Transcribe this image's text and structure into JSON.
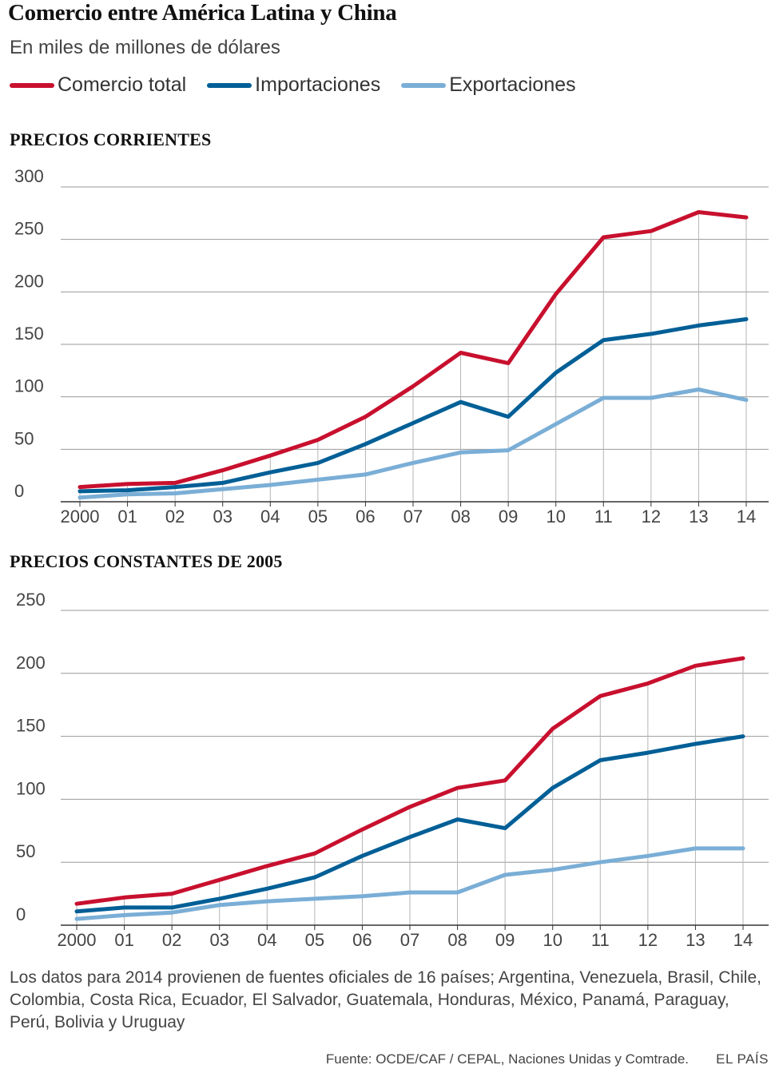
{
  "title": "Comercio entre América Latina y China",
  "subtitle": "En miles de millones de dólares",
  "legend": [
    {
      "label": "Comercio total",
      "color": "#c8102e"
    },
    {
      "label": "Importaciones",
      "color": "#005f96"
    },
    {
      "label": "Exportaciones",
      "color": "#7aaed6"
    }
  ],
  "chart_data": [
    {
      "type": "line",
      "title": "PRECIOS CORRIENTES",
      "x": [
        "2000",
        "01",
        "02",
        "03",
        "04",
        "05",
        "06",
        "07",
        "08",
        "09",
        "10",
        "11",
        "12",
        "13",
        "14"
      ],
      "ylim": [
        0,
        300
      ],
      "yticks": [
        0,
        50,
        100,
        150,
        200,
        250,
        300
      ],
      "grid": true,
      "series": [
        {
          "name": "Comercio total",
          "color": "#c8102e",
          "values": [
            14,
            17,
            18,
            30,
            44,
            59,
            81,
            110,
            142,
            132,
            198,
            252,
            258,
            276,
            271
          ]
        },
        {
          "name": "Importaciones",
          "color": "#005f96",
          "values": [
            10,
            11,
            14,
            18,
            28,
            37,
            55,
            75,
            95,
            81,
            123,
            154,
            160,
            168,
            174
          ]
        },
        {
          "name": "Exportaciones",
          "color": "#7aaed6",
          "values": [
            4,
            7,
            8,
            12,
            16,
            21,
            26,
            37,
            47,
            49,
            74,
            99,
            99,
            107,
            97
          ]
        }
      ]
    },
    {
      "type": "line",
      "title": "PRECIOS CONSTANTES DE 2005",
      "x": [
        "2000",
        "01",
        "02",
        "03",
        "04",
        "05",
        "06",
        "07",
        "08",
        "09",
        "10",
        "11",
        "12",
        "13",
        "14"
      ],
      "ylim": [
        0,
        250
      ],
      "yticks": [
        0,
        50,
        100,
        150,
        200,
        250
      ],
      "grid": true,
      "series": [
        {
          "name": "Comercio total",
          "color": "#c8102e",
          "values": [
            17,
            22,
            25,
            36,
            47,
            57,
            76,
            94,
            109,
            115,
            156,
            182,
            192,
            206,
            212
          ]
        },
        {
          "name": "Importaciones",
          "color": "#005f96",
          "values": [
            11,
            14,
            14,
            21,
            29,
            38,
            55,
            70,
            84,
            77,
            109,
            131,
            137,
            144,
            150
          ]
        },
        {
          "name": "Exportaciones",
          "color": "#7aaed6",
          "values": [
            5,
            8,
            10,
            16,
            19,
            21,
            23,
            26,
            26,
            40,
            44,
            50,
            55,
            61,
            61
          ]
        }
      ]
    }
  ],
  "note": "Los datos para 2014 provienen de fuentes oficiales de 16 países; Argentina, Venezuela, Brasil, Chile, Colombia, Costa Rica, Ecuador, El Salvador, Guatemala, Honduras, México, Panamá, Paraguay, Perú, Bolivia y Uruguay",
  "source": "Fuente: OCDE/CAF / CEPAL, Naciones Unidas y Comtrade.",
  "brand": "EL PAÍS"
}
